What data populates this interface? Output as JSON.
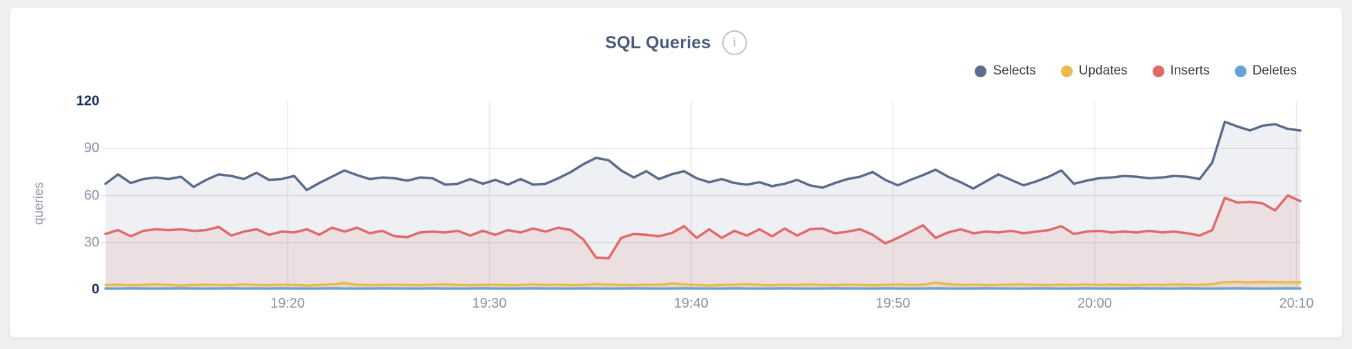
{
  "header": {
    "title": "SQL Queries",
    "info_glyph": "i"
  },
  "y_axis": {
    "title": "queries"
  },
  "colors": {
    "card_background": "#ffffff",
    "page_background": "#f0f0f1",
    "grid": "#e8e8ea",
    "tick_normal": "#8592a4",
    "tick_emphasis": "#16325a",
    "title": "#4a5b7d"
  },
  "chart_data": {
    "type": "area",
    "title": "SQL Queries",
    "ylabel": "queries",
    "ylim": [
      0,
      120
    ],
    "grid": true,
    "legend_position": "top-right",
    "x_range_visible": [
      "19:11",
      "20:10"
    ],
    "x_tick_labels": [
      "19:20",
      "19:30",
      "19:40",
      "19:50",
      "20:00",
      "20:10"
    ],
    "y_ticks": [
      120,
      90,
      60,
      30,
      0
    ],
    "y_tick_emphasis": [
      120,
      0
    ],
    "series": [
      {
        "name": "Selects",
        "color": "#5c6b8a",
        "fill": "rgba(92,107,138,0.10)",
        "values": [
          67.5,
          73.5,
          68,
          70.5,
          71.5,
          70.5,
          72,
          65.5,
          70,
          73.5,
          72.5,
          70.5,
          74.5,
          70,
          70.5,
          72.5,
          63.5,
          68,
          72,
          76,
          73,
          70.5,
          71.5,
          71,
          69.5,
          71.5,
          71,
          67,
          67.5,
          70.5,
          67.5,
          70,
          67,
          70.5,
          67,
          67.5,
          71,
          75,
          80,
          84,
          82.5,
          76,
          71.5,
          75.5,
          70.5,
          73.5,
          75.5,
          71,
          68.5,
          70.5,
          68,
          67,
          68.5,
          66,
          67.5,
          70,
          66.5,
          65,
          68,
          70.5,
          72,
          75,
          70,
          66.5,
          70,
          73,
          76.5,
          72,
          68.5,
          64.5,
          69,
          73.5,
          70,
          66.5,
          69,
          72,
          76,
          67.5,
          69.5,
          71,
          71.5,
          72.5,
          72,
          71,
          71.5,
          72.5,
          72,
          70.5,
          81,
          107,
          104,
          101.5,
          104.5,
          105.5,
          102.5,
          101.5
        ]
      },
      {
        "name": "Updates",
        "color": "#eaba4d",
        "fill": "rgba(234,186,77,0.18)",
        "values": [
          3,
          3.2,
          2.8,
          3,
          3.4,
          3,
          2.6,
          3,
          3.2,
          3,
          2.8,
          3.4,
          3,
          2.8,
          3.2,
          3,
          2.6,
          3,
          3.4,
          4.2,
          3.2,
          2.8,
          3,
          3.2,
          3,
          2.8,
          3.2,
          3.4,
          3,
          2.8,
          3,
          3.2,
          2.8,
          3,
          3.4,
          3,
          3.2,
          2.8,
          3,
          3.6,
          3.2,
          3,
          2.8,
          3.2,
          3,
          4,
          3.4,
          3,
          2.6,
          3,
          3.2,
          3.6,
          3,
          2.8,
          3.2,
          3,
          3.4,
          3,
          2.8,
          3.2,
          3,
          2.8,
          3,
          3.4,
          3,
          3.2,
          4.4,
          3.6,
          3,
          3.2,
          2.8,
          3,
          3.2,
          3.4,
          3,
          2.8,
          3.2,
          3,
          3.4,
          3,
          3.2,
          3,
          2.8,
          3.2,
          3,
          3.4,
          3.2,
          3,
          3.6,
          4.8,
          5,
          4.6,
          5,
          4.8,
          4.6,
          4.8
        ]
      },
      {
        "name": "Inserts",
        "color": "#e06a6a",
        "fill": "rgba(224,106,106,0.13)",
        "values": [
          35.5,
          38,
          34,
          37.5,
          38.5,
          38,
          38.5,
          37.5,
          38,
          40,
          34.5,
          37,
          38.5,
          35,
          37,
          36.5,
          38.5,
          35,
          39.5,
          37,
          39.5,
          36,
          37.5,
          34,
          33.5,
          36.5,
          37,
          36.5,
          37.5,
          34.5,
          37.5,
          35,
          38,
          36.5,
          39,
          37,
          39.5,
          38,
          32,
          20.5,
          20,
          33,
          35.5,
          35,
          34,
          36,
          40.5,
          33,
          38.5,
          33,
          37.5,
          34.5,
          38.5,
          34,
          39,
          34.5,
          38.5,
          39,
          36,
          37,
          38.5,
          35,
          29.5,
          33,
          37,
          41,
          33,
          36.5,
          38.5,
          36,
          37,
          36.5,
          37.5,
          36,
          37,
          38,
          40.5,
          35.5,
          37,
          37.5,
          36.5,
          37,
          36.5,
          37.5,
          36.5,
          37,
          36,
          34.5,
          38,
          58.5,
          55.5,
          56,
          55,
          50.5,
          60,
          56.5
        ]
      },
      {
        "name": "Deletes",
        "color": "#66a2d5",
        "fill": "rgba(102,162,213,0.25)",
        "values": [
          0.8,
          0.7,
          0.9,
          0.8,
          0.7,
          0.8,
          0.9,
          0.8,
          0.7,
          0.8,
          0.9,
          0.8,
          0.8,
          0.7,
          0.9,
          0.8,
          0.7,
          0.8,
          0.9,
          0.8,
          0.7,
          0.8,
          0.9,
          0.8,
          0.8,
          0.7,
          0.9,
          0.8,
          0.7,
          0.8,
          0.9,
          0.8,
          0.7,
          0.8,
          0.9,
          0.8,
          0.8,
          0.7,
          0.9,
          0.8,
          0.7,
          0.8,
          0.9,
          0.8,
          0.7,
          0.8,
          0.9,
          0.8,
          0.8,
          0.7,
          0.9,
          0.8,
          0.7,
          0.8,
          0.9,
          0.8,
          0.7,
          0.8,
          0.9,
          0.8,
          0.8,
          0.7,
          0.9,
          0.8,
          0.7,
          0.8,
          0.9,
          0.8,
          0.7,
          0.8,
          0.9,
          0.8,
          0.8,
          0.7,
          0.9,
          0.8,
          0.7,
          0.8,
          0.9,
          0.8,
          0.7,
          0.8,
          0.9,
          0.8,
          0.8,
          0.7,
          0.9,
          0.8,
          0.7,
          0.8,
          0.9,
          0.8,
          0.7,
          0.8,
          0.9,
          0.8
        ]
      }
    ],
    "legend_order": [
      "Selects",
      "Updates",
      "Inserts",
      "Deletes"
    ]
  }
}
